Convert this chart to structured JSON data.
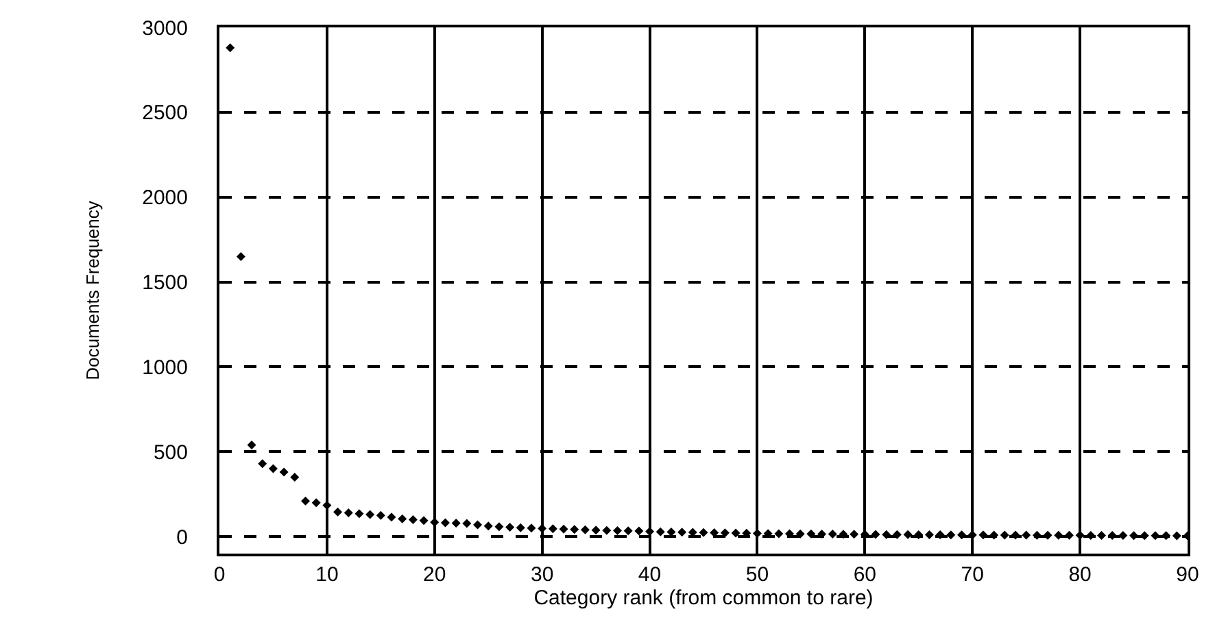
{
  "chart_data": {
    "type": "scatter",
    "xlabel": "Category rank (from common to rare)",
    "ylabel": "Documents Frequency",
    "x": [
      1,
      2,
      3,
      4,
      5,
      6,
      7,
      8,
      9,
      10,
      11,
      12,
      13,
      14,
      15,
      16,
      17,
      18,
      19,
      20,
      21,
      22,
      23,
      24,
      25,
      26,
      27,
      28,
      29,
      30,
      31,
      32,
      33,
      34,
      35,
      36,
      37,
      38,
      39,
      40,
      41,
      42,
      43,
      44,
      45,
      46,
      47,
      48,
      49,
      50,
      51,
      52,
      53,
      54,
      55,
      56,
      57,
      58,
      59,
      60,
      61,
      62,
      63,
      64,
      65,
      66,
      67,
      68,
      69,
      70,
      71,
      72,
      73,
      74,
      75,
      76,
      77,
      78,
      79,
      80,
      81,
      82,
      83,
      84,
      85,
      86,
      87,
      88,
      89,
      90
    ],
    "series": [
      {
        "color": "#000000",
        "values": [
          2880,
          1650,
          540,
          430,
          400,
          380,
          350,
          210,
          200,
          185,
          145,
          140,
          135,
          130,
          125,
          115,
          105,
          100,
          95,
          85,
          82,
          80,
          78,
          70,
          62,
          58,
          55,
          52,
          50,
          48,
          46,
          44,
          42,
          40,
          38,
          36,
          35,
          34,
          33,
          30,
          28,
          27,
          26,
          25,
          24,
          23,
          22,
          21,
          20,
          19,
          18,
          17,
          17,
          16,
          16,
          15,
          15,
          14,
          14,
          13,
          13,
          12,
          12,
          12,
          11,
          11,
          11,
          10,
          10,
          10,
          10,
          9,
          9,
          9,
          9,
          8,
          8,
          8,
          8,
          8,
          7,
          7,
          7,
          7,
          6,
          6,
          6,
          6,
          5,
          5
        ]
      }
    ],
    "xlim": [
      0,
      90
    ],
    "xticks": [
      0,
      10,
      20,
      30,
      40,
      50,
      60,
      70,
      80,
      90
    ],
    "ylim": [
      -100,
      3000
    ],
    "yticks": [
      0,
      500,
      1000,
      1500,
      2000,
      2500,
      3000
    ],
    "grid": true,
    "marker": "diamond",
    "legend": false
  }
}
